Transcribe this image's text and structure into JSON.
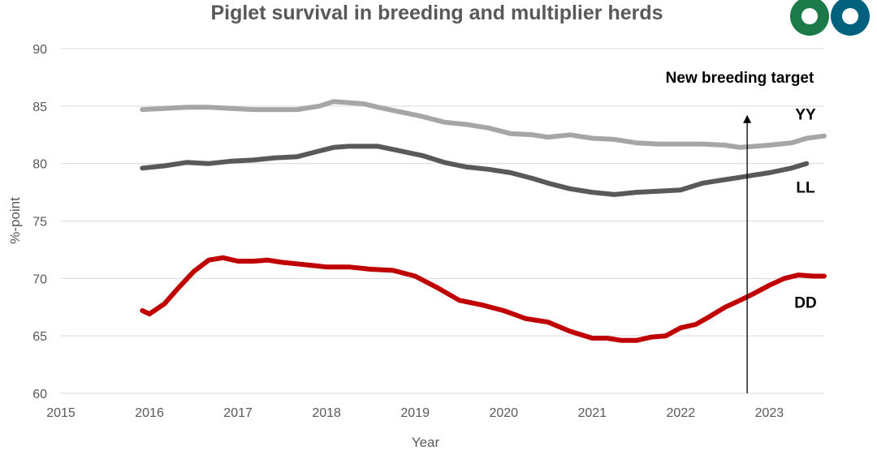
{
  "chart_data": {
    "type": "line",
    "title": "Piglet survival in breeding and multiplier herds",
    "xlabel": "Year",
    "ylabel": "%-point",
    "xlim": [
      2015,
      2023.62
    ],
    "ylim": [
      60,
      90
    ],
    "x_ticks": [
      "2015",
      "2016",
      "2017",
      "2018",
      "2019",
      "2020",
      "2021",
      "2022",
      "2023"
    ],
    "y_ticks": [
      "60",
      "65",
      "70",
      "75",
      "80",
      "85",
      "90"
    ],
    "grid": "horizontal",
    "legend": "none",
    "annotation": {
      "text": "New breeding target",
      "x": 2022.75,
      "y_start": 60,
      "y_end": 84.3
    },
    "series": [
      {
        "name": "YY",
        "color": "#a6a6a6",
        "x": [
          2015.92,
          2016.17,
          2016.42,
          2016.67,
          2016.92,
          2017.17,
          2017.42,
          2017.67,
          2017.92,
          2018.08,
          2018.25,
          2018.42,
          2018.58,
          2018.83,
          2019.08,
          2019.33,
          2019.58,
          2019.83,
          2020.08,
          2020.33,
          2020.5,
          2020.75,
          2021.0,
          2021.25,
          2021.5,
          2021.75,
          2022.0,
          2022.25,
          2022.5,
          2022.67,
          2022.83,
          2023.0,
          2023.25,
          2023.42,
          2023.62
        ],
        "values": [
          84.7,
          84.8,
          84.9,
          84.9,
          84.8,
          84.7,
          84.7,
          84.7,
          85.0,
          85.4,
          85.3,
          85.2,
          84.9,
          84.5,
          84.1,
          83.6,
          83.4,
          83.1,
          82.6,
          82.5,
          82.3,
          82.5,
          82.2,
          82.1,
          81.8,
          81.7,
          81.7,
          81.7,
          81.6,
          81.4,
          81.5,
          81.6,
          81.8,
          82.2,
          82.4
        ]
      },
      {
        "name": "LL",
        "color": "#595959",
        "x": [
          2015.92,
          2016.17,
          2016.42,
          2016.67,
          2016.92,
          2017.17,
          2017.42,
          2017.67,
          2017.92,
          2018.08,
          2018.25,
          2018.42,
          2018.58,
          2018.83,
          2019.08,
          2019.33,
          2019.58,
          2019.83,
          2020.08,
          2020.33,
          2020.5,
          2020.75,
          2021.0,
          2021.25,
          2021.5,
          2021.75,
          2022.0,
          2022.25,
          2022.5,
          2022.67,
          2022.83,
          2023.0,
          2023.25,
          2023.42
        ],
        "values": [
          79.6,
          79.8,
          80.1,
          80.0,
          80.2,
          80.3,
          80.5,
          80.6,
          81.1,
          81.4,
          81.5,
          81.5,
          81.5,
          81.1,
          80.7,
          80.1,
          79.7,
          79.5,
          79.2,
          78.7,
          78.3,
          77.8,
          77.5,
          77.3,
          77.5,
          77.6,
          77.7,
          78.3,
          78.6,
          78.8,
          79.0,
          79.2,
          79.6,
          80.0
        ]
      },
      {
        "name": "DD",
        "color": "#c00000",
        "x": [
          2015.92,
          2016.0,
          2016.17,
          2016.33,
          2016.5,
          2016.67,
          2016.83,
          2017.0,
          2017.17,
          2017.33,
          2017.5,
          2017.75,
          2018.0,
          2018.25,
          2018.5,
          2018.75,
          2019.0,
          2019.25,
          2019.5,
          2019.75,
          2020.0,
          2020.25,
          2020.5,
          2020.75,
          2021.0,
          2021.17,
          2021.33,
          2021.5,
          2021.67,
          2021.83,
          2022.0,
          2022.17,
          2022.33,
          2022.5,
          2022.67,
          2022.83,
          2023.0,
          2023.17,
          2023.33,
          2023.5,
          2023.62
        ],
        "values": [
          67.2,
          66.9,
          67.8,
          69.2,
          70.6,
          71.6,
          71.8,
          71.5,
          71.5,
          71.6,
          71.4,
          71.2,
          71.0,
          71.0,
          70.8,
          70.7,
          70.2,
          69.2,
          68.1,
          67.7,
          67.2,
          66.5,
          66.2,
          65.4,
          64.8,
          64.8,
          64.6,
          64.6,
          64.9,
          65.0,
          65.7,
          66.0,
          66.7,
          67.5,
          68.1,
          68.7,
          69.4,
          70.0,
          70.3,
          70.2,
          70.2
        ]
      }
    ]
  }
}
